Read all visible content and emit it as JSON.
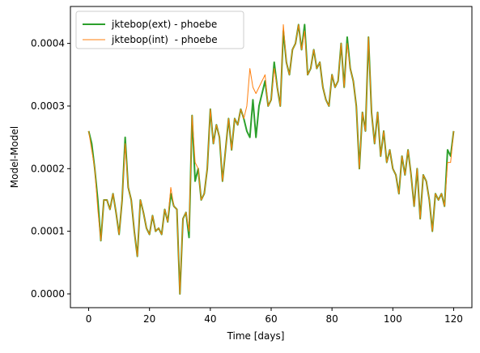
{
  "chart_data": {
    "type": "line",
    "xlabel": "Time [days]",
    "ylabel": "Model-Model",
    "x": [
      0,
      1,
      2,
      3,
      4,
      5,
      6,
      7,
      8,
      9,
      10,
      11,
      12,
      13,
      14,
      15,
      16,
      17,
      18,
      19,
      20,
      21,
      22,
      23,
      24,
      25,
      26,
      27,
      28,
      29,
      30,
      31,
      32,
      33,
      34,
      35,
      36,
      37,
      38,
      39,
      40,
      41,
      42,
      43,
      44,
      45,
      46,
      47,
      48,
      49,
      50,
      51,
      52,
      53,
      54,
      55,
      56,
      57,
      58,
      59,
      60,
      61,
      62,
      63,
      64,
      65,
      66,
      67,
      68,
      69,
      70,
      71,
      72,
      73,
      74,
      75,
      76,
      77,
      78,
      79,
      80,
      81,
      82,
      83,
      84,
      85,
      86,
      87,
      88,
      89,
      90,
      91,
      92,
      93,
      94,
      95,
      96,
      97,
      98,
      99,
      100,
      101,
      102,
      103,
      104,
      105,
      106,
      107,
      108,
      109,
      110,
      111,
      112,
      113,
      114,
      115,
      116,
      117,
      118,
      119,
      120
    ],
    "series": [
      {
        "name": "jktebop(ext) - phoebe",
        "color": "#2ca02c",
        "values": [
          0.00026,
          0.00024,
          0.0002,
          0.00015,
          8.5e-05,
          0.00015,
          0.00015,
          0.000135,
          0.00016,
          0.00013,
          9.5e-05,
          0.00015,
          0.00025,
          0.00017,
          0.00015,
          0.0001,
          6e-05,
          0.00015,
          0.00013,
          0.000105,
          9.5e-05,
          0.000125,
          0.0001,
          0.000105,
          9.5e-05,
          0.000135,
          0.000115,
          0.00016,
          0.00014,
          0.000135,
          0.0,
          0.00012,
          0.00013,
          9e-05,
          0.000285,
          0.00018,
          0.0002,
          0.00015,
          0.00016,
          0.0002,
          0.000295,
          0.00024,
          0.00027,
          0.00025,
          0.00018,
          0.00023,
          0.00028,
          0.00023,
          0.00028,
          0.00027,
          0.000295,
          0.00028,
          0.00026,
          0.00025,
          0.00031,
          0.00025,
          0.0003,
          0.00032,
          0.00034,
          0.0003,
          0.00031,
          0.00037,
          0.00033,
          0.0003,
          0.00042,
          0.00037,
          0.00035,
          0.00039,
          0.0004,
          0.00043,
          0.00039,
          0.00043,
          0.00035,
          0.00036,
          0.00039,
          0.00036,
          0.00037,
          0.00033,
          0.00031,
          0.0003,
          0.00035,
          0.00033,
          0.00034,
          0.0004,
          0.00033,
          0.00041,
          0.00036,
          0.00034,
          0.0003,
          0.0002,
          0.00029,
          0.00026,
          0.00041,
          0.00029,
          0.00024,
          0.00029,
          0.00022,
          0.00026,
          0.00021,
          0.00023,
          0.0002,
          0.00019,
          0.00016,
          0.00022,
          0.00019,
          0.00023,
          0.00019,
          0.00014,
          0.0002,
          0.00012,
          0.00019,
          0.00018,
          0.00015,
          0.0001,
          0.00016,
          0.00015,
          0.00016,
          0.00014,
          0.00023,
          0.00022,
          0.00026
        ]
      },
      {
        "name": "jktebop(int)  - phoebe",
        "color": "#ff7f0e",
        "values": [
          0.00026,
          0.00023,
          0.0002,
          0.000135,
          8.5e-05,
          0.00015,
          0.00015,
          0.000135,
          0.00016,
          0.00013,
          9.5e-05,
          0.00015,
          0.00024,
          0.00017,
          0.00015,
          0.0001,
          6e-05,
          0.00015,
          0.00013,
          0.000105,
          9.5e-05,
          0.000125,
          0.0001,
          0.000105,
          9.5e-05,
          0.000135,
          0.000115,
          0.00017,
          0.00014,
          0.000135,
          0.0,
          0.00012,
          0.00013,
          0.0001,
          0.000285,
          0.00021,
          0.0002,
          0.00015,
          0.00016,
          0.0002,
          0.000295,
          0.00024,
          0.00027,
          0.00025,
          0.00018,
          0.00023,
          0.00028,
          0.00023,
          0.00028,
          0.00027,
          0.000295,
          0.00028,
          0.0003,
          0.00036,
          0.00033,
          0.00032,
          0.00033,
          0.00034,
          0.00035,
          0.0003,
          0.00031,
          0.00036,
          0.00033,
          0.0003,
          0.00043,
          0.00037,
          0.00035,
          0.00039,
          0.0004,
          0.00043,
          0.00039,
          0.00042,
          0.00035,
          0.00036,
          0.00039,
          0.00036,
          0.00037,
          0.00033,
          0.00031,
          0.0003,
          0.00035,
          0.00033,
          0.00034,
          0.0004,
          0.00033,
          0.0004,
          0.00036,
          0.00034,
          0.0003,
          0.0002,
          0.00029,
          0.00026,
          0.00041,
          0.00029,
          0.00024,
          0.00029,
          0.00022,
          0.00026,
          0.00021,
          0.00023,
          0.0002,
          0.00019,
          0.00016,
          0.00022,
          0.00019,
          0.00023,
          0.00019,
          0.00014,
          0.0002,
          0.00012,
          0.00019,
          0.00018,
          0.00015,
          0.0001,
          0.00016,
          0.00015,
          0.00016,
          0.00014,
          0.00021,
          0.00021,
          0.00026
        ]
      }
    ],
    "xlim": [
      -6,
      126
    ],
    "xticks": [
      0,
      20,
      40,
      60,
      80,
      100,
      120
    ],
    "ylim": [
      -2.2e-05,
      0.000459
    ],
    "yticks": [
      {
        "value": 0,
        "label": "0.0000"
      },
      0.0001,
      0.0002,
      0.0003,
      0.0004
    ],
    "legend": "upper left"
  }
}
